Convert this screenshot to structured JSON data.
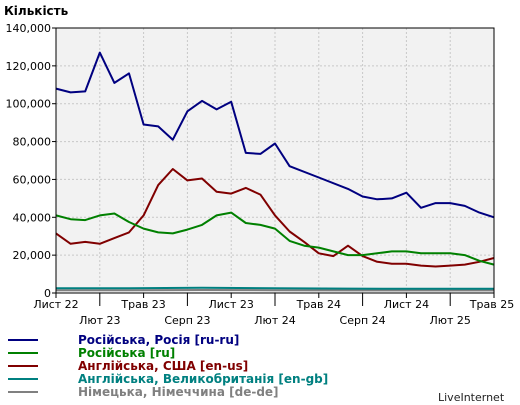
{
  "chart_data": {
    "type": "line",
    "ylabel": "Кількість",
    "ylim": [
      0,
      140000
    ],
    "yticks": [
      0,
      20000,
      40000,
      60000,
      80000,
      100000,
      120000,
      140000
    ],
    "ytick_labels": [
      "0",
      "20,000",
      "40,000",
      "60,000",
      "80,000",
      "100,000",
      "120,000",
      "140,000"
    ],
    "x_tick_labels_upper": [
      "Лист 22",
      "Трав 23",
      "Лист 23",
      "Трав 24",
      "Лист 24",
      "Трав 25"
    ],
    "x_tick_labels_lower": [
      "Лют 23",
      "Серп 23",
      "Лют 24",
      "Серп 24",
      "Лют 25"
    ],
    "x_tick_index": {
      "Лист 22": 0,
      "Лют 23": 6,
      "Трав 23": 12,
      "Серп 23": 18,
      "Лист 23": 24,
      "Лют 24": 30,
      "Трав 24": 36,
      "Серп 24": 42,
      "Лист 24": 48,
      "Лют 25": 54,
      "Трав 25": 60
    },
    "n_points": 61,
    "grid": true,
    "legend_position": "bottom-left",
    "series": [
      {
        "name": "Російська, Росія [ru-ru]",
        "color": "#000080",
        "points": [
          [
            0,
            108000
          ],
          [
            2,
            106000
          ],
          [
            4,
            106500
          ],
          [
            6,
            127000
          ],
          [
            8,
            111000
          ],
          [
            10,
            116000
          ],
          [
            12,
            89000
          ],
          [
            14,
            88000
          ],
          [
            16,
            81000
          ],
          [
            18,
            96000
          ],
          [
            20,
            101500
          ],
          [
            22,
            97000
          ],
          [
            24,
            101000
          ],
          [
            26,
            74000
          ],
          [
            28,
            73500
          ],
          [
            30,
            79000
          ],
          [
            32,
            67000
          ],
          [
            36,
            61000
          ],
          [
            40,
            55000
          ],
          [
            42,
            51000
          ],
          [
            44,
            49500
          ],
          [
            46,
            50000
          ],
          [
            48,
            53000
          ],
          [
            50,
            45000
          ],
          [
            52,
            47500
          ],
          [
            54,
            47500
          ],
          [
            56,
            46000
          ],
          [
            58,
            42500
          ],
          [
            60,
            40000
          ]
        ]
      },
      {
        "name": "Російська [ru]",
        "color": "#008000",
        "points": [
          [
            0,
            41000
          ],
          [
            2,
            39000
          ],
          [
            4,
            38500
          ],
          [
            6,
            41000
          ],
          [
            8,
            42000
          ],
          [
            10,
            37500
          ],
          [
            12,
            34000
          ],
          [
            14,
            32000
          ],
          [
            16,
            31500
          ],
          [
            18,
            33500
          ],
          [
            20,
            36000
          ],
          [
            22,
            41000
          ],
          [
            24,
            42500
          ],
          [
            26,
            37000
          ],
          [
            28,
            36000
          ],
          [
            30,
            34000
          ],
          [
            32,
            27500
          ],
          [
            34,
            25000
          ],
          [
            36,
            24000
          ],
          [
            38,
            22000
          ],
          [
            40,
            20000
          ],
          [
            42,
            20000
          ],
          [
            44,
            21000
          ],
          [
            46,
            22000
          ],
          [
            48,
            22000
          ],
          [
            50,
            21000
          ],
          [
            52,
            21000
          ],
          [
            54,
            21000
          ],
          [
            56,
            20000
          ],
          [
            58,
            17000
          ],
          [
            60,
            15000
          ]
        ]
      },
      {
        "name": "Англійська, США [en-us]",
        "color": "#800000",
        "points": [
          [
            0,
            31500
          ],
          [
            2,
            26000
          ],
          [
            4,
            27000
          ],
          [
            6,
            26000
          ],
          [
            8,
            29000
          ],
          [
            10,
            32000
          ],
          [
            12,
            41000
          ],
          [
            14,
            57000
          ],
          [
            16,
            65500
          ],
          [
            18,
            59500
          ],
          [
            20,
            60500
          ],
          [
            22,
            53500
          ],
          [
            24,
            52500
          ],
          [
            26,
            55500
          ],
          [
            28,
            52000
          ],
          [
            30,
            41000
          ],
          [
            32,
            32500
          ],
          [
            34,
            27000
          ],
          [
            36,
            21000
          ],
          [
            38,
            19500
          ],
          [
            40,
            25000
          ],
          [
            42,
            19500
          ],
          [
            44,
            16500
          ],
          [
            46,
            15500
          ],
          [
            48,
            15500
          ],
          [
            50,
            14500
          ],
          [
            52,
            14000
          ],
          [
            54,
            14500
          ],
          [
            56,
            15000
          ],
          [
            58,
            16500
          ],
          [
            60,
            18500
          ]
        ]
      },
      {
        "name": "Англійська, Великобританія [en-gb]",
        "color": "#008080",
        "points": [
          [
            0,
            2500
          ],
          [
            10,
            2500
          ],
          [
            20,
            2800
          ],
          [
            30,
            2500
          ],
          [
            40,
            2300
          ],
          [
            50,
            2200
          ],
          [
            60,
            2200
          ]
        ]
      },
      {
        "name": "Німецька, Німеччина [de-de]",
        "color": "#808080",
        "points": [
          [
            0,
            1500
          ],
          [
            10,
            1500
          ],
          [
            20,
            1600
          ],
          [
            30,
            1500
          ],
          [
            40,
            1400
          ],
          [
            50,
            1400
          ],
          [
            60,
            1400
          ]
        ]
      }
    ]
  },
  "branding": "LiveInternet"
}
